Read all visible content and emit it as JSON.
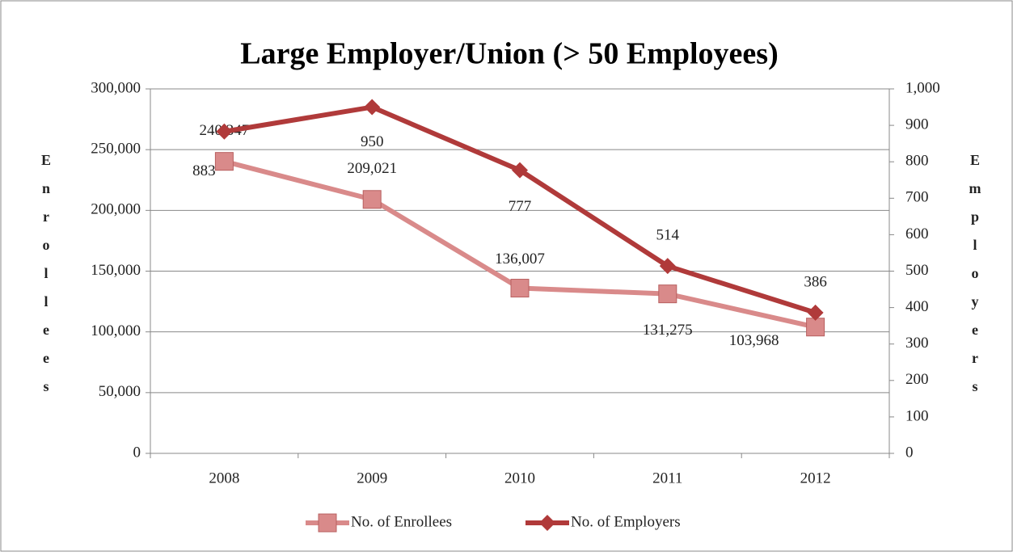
{
  "chart_data": {
    "type": "line",
    "title": "Large Employer/Union (> 50 Employees)",
    "y_label": "Enrollees",
    "y2_label": "Employers",
    "categories": [
      "2008",
      "2009",
      "2010",
      "2011",
      "2012"
    ],
    "series": [
      {
        "name": "No. of Enrollees",
        "color": "#d98a8a",
        "marker": "square",
        "values": [
          240347,
          209021,
          136007,
          131275,
          103968
        ],
        "value_labels": [
          "240,347",
          "209,021",
          "136,007",
          "131,275",
          "103,968"
        ]
      },
      {
        "name": "No. of Employers",
        "color": "#b03a3a",
        "marker": "diamond",
        "axis": "y2",
        "values": [
          883,
          950,
          777,
          514,
          386
        ]
      }
    ],
    "ylim": [
      0,
      300000
    ],
    "yticks": [
      0,
      {
        "value": 50000,
        "label": "50,000"
      },
      {
        "value": 100000,
        "label": "100,000"
      },
      {
        "value": 150000,
        "label": "150,000"
      },
      {
        "value": 200000,
        "label": "200,000"
      },
      {
        "value": 250000,
        "label": "250,000"
      },
      {
        "value": 300000,
        "label": "300,000"
      }
    ],
    "y2lim": [
      0,
      1000
    ],
    "y2ticks": [
      0,
      100,
      200,
      300,
      400,
      500,
      600,
      700,
      800,
      900,
      {
        "value": 1000,
        "label": "1,000"
      }
    ],
    "grid": true,
    "legend": "bottom"
  }
}
